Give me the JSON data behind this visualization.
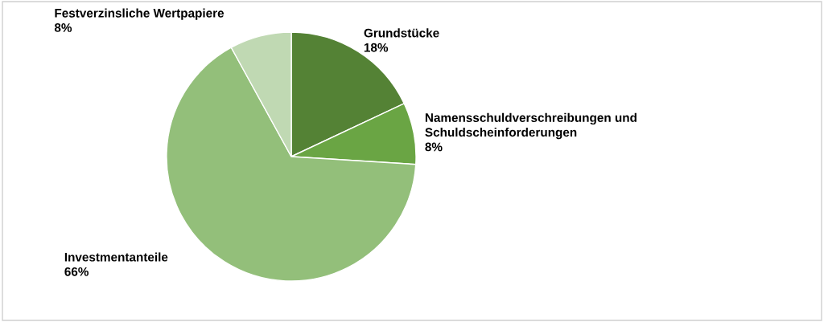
{
  "chart_data": {
    "type": "pie",
    "categories": [
      "Grundstücke",
      "Namensschuldverschreibungen und Schuldscheinforderungen",
      "Investmentanteile",
      "Festverzinsliche Wertpapiere"
    ],
    "values": [
      18,
      8,
      66,
      8
    ],
    "value_labels": [
      "18%",
      "8%",
      "66%",
      "8%"
    ],
    "colors": [
      "#548235",
      "#6aa544",
      "#93bf7a",
      "#c0d9b3"
    ],
    "legend": false
  }
}
